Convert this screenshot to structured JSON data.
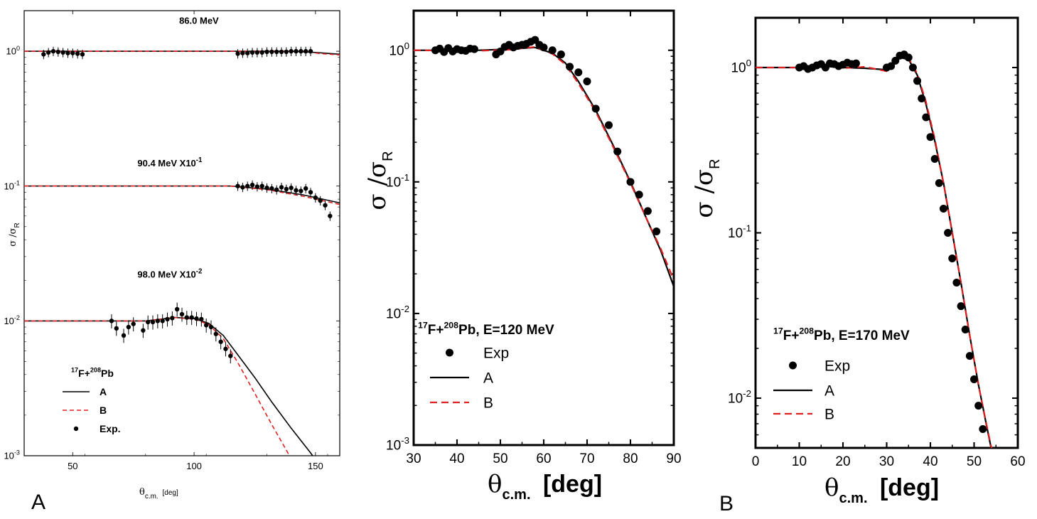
{
  "chart_data": [
    {
      "type": "line",
      "panel_id": "a",
      "panel_label": "A",
      "scale": "log-y",
      "xlabel_main": "θ",
      "xlabel_sub": "c.m.",
      "xlabel_unit": "[deg]",
      "ylabel_main": "σ /σ",
      "ylabel_sub": "R",
      "xlim": [
        30,
        160
      ],
      "ylim": [
        0.001,
        2
      ],
      "x_ticks": [
        50,
        100,
        150
      ],
      "x_tick_labels": [
        "50",
        "100",
        "150"
      ],
      "y_ticks": [
        1,
        0.1,
        0.01,
        0.001
      ],
      "y_tick_bases": [
        "10",
        "10",
        "10",
        "10"
      ],
      "y_tick_exps": [
        "0",
        "-1",
        "-2",
        "-3"
      ],
      "annotations": [
        {
          "text": "86.0 MeV",
          "x": 102,
          "y": 1.6
        },
        {
          "text": "90.4 MeV X10",
          "sup": "-1",
          "x": 90,
          "y": 0.14
        },
        {
          "text": "98.0 MeV X10",
          "sup": "-2",
          "x": 90,
          "y": 0.021
        }
      ],
      "legend": {
        "title_pre": "17",
        "title_mid": "F+",
        "title_sup2": "208",
        "title_post": "Pb",
        "entries": [
          "A",
          "B",
          "Exp."
        ],
        "location": "lower-left"
      },
      "series": [
        {
          "name": "A",
          "color": "#000000",
          "dash": "solid",
          "x": [
            30,
            100,
            140,
            150,
            160
          ],
          "y": [
            1,
            1,
            1,
            0.98,
            0.95
          ]
        },
        {
          "name": "B",
          "color": "#e02020",
          "dash": "dashed",
          "x": [
            30,
            100,
            145,
            152,
            160
          ],
          "y": [
            1,
            1,
            1,
            0.96,
            0.94
          ]
        },
        {
          "name": "A",
          "color": "#000000",
          "dash": "solid",
          "x": [
            30,
            115,
            130,
            145,
            160
          ],
          "y": [
            0.1,
            0.1,
            0.095,
            0.086,
            0.075
          ]
        },
        {
          "name": "B",
          "color": "#e02020",
          "dash": "dashed",
          "x": [
            30,
            115,
            130,
            145,
            160
          ],
          "y": [
            0.1,
            0.1,
            0.094,
            0.084,
            0.073
          ]
        },
        {
          "name": "A",
          "color": "#000000",
          "dash": "solid",
          "x": [
            30,
            80,
            92,
            100,
            106,
            112,
            118,
            125,
            132,
            140,
            148,
            155
          ],
          "y": [
            0.01,
            0.01,
            0.0106,
            0.0104,
            0.0096,
            0.0078,
            0.0056,
            0.0038,
            0.0025,
            0.0016,
            0.00105,
            0.0007
          ]
        },
        {
          "name": "B",
          "color": "#e02020",
          "dash": "dashed",
          "x": [
            30,
            80,
            92,
            100,
            106,
            112,
            118,
            125,
            132,
            138,
            143
          ],
          "y": [
            0.01,
            0.01,
            0.0106,
            0.0103,
            0.0094,
            0.0074,
            0.0049,
            0.0029,
            0.0017,
            0.0011,
            0.00075
          ]
        },
        {
          "name": "Exp.",
          "color": "#000000",
          "type": "scatter",
          "x": [
            38,
            40,
            42,
            44,
            46,
            48,
            50,
            52,
            54,
            118,
            120,
            122,
            124,
            126,
            128,
            130,
            132,
            134,
            136,
            138,
            140,
            142,
            144,
            146,
            148
          ],
          "y": [
            0.95,
            0.98,
            1.0,
            0.99,
            0.98,
            0.97,
            0.97,
            0.96,
            0.95,
            0.96,
            0.97,
            0.97,
            0.98,
            0.98,
            0.98,
            0.99,
            0.99,
            0.99,
            0.99,
            0.99,
            1.0,
            1.0,
            1.0,
            1.0,
            1.0
          ],
          "err": 0.08
        },
        {
          "name": "Exp.",
          "color": "#000000",
          "type": "scatter",
          "x": [
            118,
            120,
            122,
            124,
            126,
            128,
            130,
            132,
            134,
            136,
            138,
            140,
            142,
            144,
            146,
            148,
            150,
            152,
            154,
            156
          ],
          "y": [
            0.1,
            0.098,
            0.1,
            0.102,
            0.099,
            0.1,
            0.097,
            0.096,
            0.094,
            0.098,
            0.095,
            0.097,
            0.093,
            0.092,
            0.096,
            0.09,
            0.082,
            0.078,
            0.072,
            0.06
          ],
          "err": 0.08
        },
        {
          "name": "Exp.",
          "color": "#000000",
          "type": "scatter",
          "x": [
            66,
            68,
            71,
            73,
            75,
            79,
            81,
            83,
            85,
            87,
            89,
            91,
            93,
            95,
            97,
            99,
            101,
            103,
            105,
            107,
            109,
            111,
            113,
            115
          ],
          "y": [
            0.01,
            0.0088,
            0.0078,
            0.009,
            0.0095,
            0.0085,
            0.0098,
            0.0098,
            0.01,
            0.01,
            0.0103,
            0.0105,
            0.0122,
            0.0112,
            0.0106,
            0.0106,
            0.0104,
            0.0103,
            0.0093,
            0.009,
            0.008,
            0.007,
            0.0062,
            0.0055
          ],
          "err": 0.12
        }
      ]
    },
    {
      "type": "line",
      "panel_id": "b",
      "panel_label": "",
      "scale": "log-y",
      "xlabel_main": "θ",
      "xlabel_sub": "c.m.",
      "xlabel_unit": "[deg]",
      "ylabel_main": "σ /σ",
      "ylabel_sub": "R",
      "xlim": [
        30,
        90
      ],
      "ylim": [
        0.001,
        2
      ],
      "x_ticks": [
        30,
        40,
        50,
        60,
        70,
        80,
        90
      ],
      "x_tick_labels": [
        "30",
        "40",
        "50",
        "60",
        "70",
        "80",
        "90"
      ],
      "y_ticks": [
        1,
        0.1,
        0.01,
        0.001
      ],
      "y_tick_bases": [
        "10",
        "10",
        "10",
        "10"
      ],
      "y_tick_exps": [
        "0",
        "-1",
        "-2",
        "-3"
      ],
      "legend": {
        "title_pre": "17",
        "title_mid": "F+",
        "title_sup2": "208",
        "title_post": "Pb, E=120 MeV",
        "entries": [
          "Exp",
          "A",
          "B"
        ],
        "location": "center-left"
      },
      "series": [
        {
          "name": "A",
          "color": "#000000",
          "dash": "solid",
          "x": [
            30,
            45,
            52,
            58,
            62,
            65,
            68,
            72,
            76,
            80,
            84,
            87,
            90
          ],
          "y": [
            1,
            1,
            1.02,
            1.05,
            0.95,
            0.8,
            0.58,
            0.35,
            0.19,
            0.1,
            0.05,
            0.03,
            0.016
          ]
        },
        {
          "name": "B",
          "color": "#e02020",
          "dash": "dashed",
          "x": [
            30,
            45,
            52,
            58,
            62,
            65,
            68,
            72,
            76,
            80,
            84,
            87,
            90
          ],
          "y": [
            1,
            0.99,
            1.01,
            1.06,
            0.94,
            0.78,
            0.56,
            0.34,
            0.185,
            0.098,
            0.05,
            0.031,
            0.018
          ]
        },
        {
          "name": "Exp",
          "color": "#000000",
          "type": "scatter",
          "x": [
            35,
            36,
            37,
            38,
            39,
            40,
            41,
            42,
            43,
            44,
            49,
            50,
            51,
            52,
            53,
            54,
            55,
            56,
            57,
            58,
            59,
            60,
            62,
            64,
            66,
            68,
            70,
            72,
            75,
            77,
            80,
            82,
            84,
            86
          ],
          "y": [
            1.0,
            1.03,
            0.97,
            1.04,
            0.98,
            1.02,
            1.0,
            0.99,
            1.03,
            1.02,
            0.93,
            0.98,
            1.06,
            1.1,
            1.05,
            1.08,
            1.1,
            1.12,
            1.16,
            1.2,
            1.1,
            1.05,
            1.0,
            0.93,
            0.75,
            0.68,
            0.58,
            0.36,
            0.27,
            0.17,
            0.1,
            0.08,
            0.06,
            0.042
          ],
          "err": 0.05
        }
      ]
    },
    {
      "type": "line",
      "panel_id": "c",
      "panel_label": "B",
      "scale": "log-y",
      "xlabel_main": "θ",
      "xlabel_sub": "c.m.",
      "xlabel_unit": "[deg]",
      "ylabel_main": "σ /σ",
      "ylabel_sub": "R",
      "xlim": [
        0,
        60
      ],
      "ylim": [
        0.005,
        2
      ],
      "x_ticks": [
        0,
        10,
        20,
        30,
        40,
        50,
        60
      ],
      "x_tick_labels": [
        "0",
        "10",
        "20",
        "30",
        "40",
        "50",
        "60"
      ],
      "y_ticks": [
        1,
        0.1,
        0.01
      ],
      "y_tick_bases": [
        "10",
        "10",
        "10"
      ],
      "y_tick_exps": [
        "0",
        "-1",
        "-2"
      ],
      "legend": {
        "title_pre": "17",
        "title_mid": "F+",
        "title_sup2": "208",
        "title_post": "Pb, E=170 MeV",
        "entries": [
          "Exp",
          "A",
          "B"
        ],
        "location": "lower-left"
      },
      "series": [
        {
          "name": "A",
          "color": "#000000",
          "dash": "solid",
          "x": [
            0,
            10,
            15,
            20,
            25,
            30,
            33,
            35,
            37,
            39,
            41,
            43,
            45,
            47,
            49,
            51,
            53,
            55
          ],
          "y": [
            1,
            1,
            1.02,
            1.0,
            0.99,
            0.97,
            1.15,
            1.12,
            0.9,
            0.6,
            0.36,
            0.2,
            0.1,
            0.05,
            0.024,
            0.012,
            0.0065,
            0.0036
          ]
        },
        {
          "name": "B",
          "color": "#e02020",
          "dash": "dashed",
          "x": [
            0,
            10,
            15,
            20,
            25,
            30,
            33,
            35,
            37,
            39,
            41,
            43,
            45,
            47,
            49,
            51,
            53,
            55
          ],
          "y": [
            1,
            1,
            1.03,
            0.99,
            1.01,
            0.95,
            1.18,
            1.14,
            0.92,
            0.62,
            0.37,
            0.2,
            0.1,
            0.05,
            0.024,
            0.012,
            0.0066,
            0.0037
          ]
        },
        {
          "name": "Exp",
          "color": "#000000",
          "type": "scatter",
          "x": [
            10,
            11,
            12,
            13,
            14,
            15,
            16,
            17,
            18,
            19,
            20,
            21,
            22,
            23,
            30,
            31,
            32,
            33,
            34,
            35,
            36,
            37,
            38,
            39,
            40,
            41,
            42,
            43,
            44,
            45,
            46,
            47,
            48,
            49,
            50,
            51,
            52
          ],
          "y": [
            1.0,
            1.02,
            0.98,
            1.0,
            1.03,
            1.05,
            1.0,
            1.06,
            1.05,
            1.02,
            1.04,
            1.07,
            1.05,
            1.06,
            1.0,
            1.02,
            1.1,
            1.18,
            1.2,
            1.15,
            1.0,
            0.83,
            0.65,
            0.5,
            0.38,
            0.28,
            0.2,
            0.14,
            0.1,
            0.07,
            0.05,
            0.036,
            0.026,
            0.018,
            0.013,
            0.009,
            0.0065
          ],
          "err": 0.05
        }
      ]
    }
  ]
}
